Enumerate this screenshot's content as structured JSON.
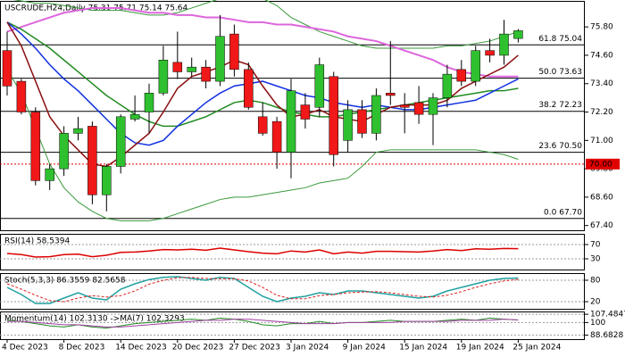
{
  "chart_data": [
    {
      "type": "candlestick",
      "title": "USCRUDE,H24,Daily 75.31 75.71 75.14 75.64",
      "categories": [
        "4 Dec 2023",
        null,
        null,
        null,
        "8 Dec 2023",
        null,
        null,
        null,
        "14 Dec 2023",
        null,
        null,
        null,
        "20 Dec 2023",
        null,
        null,
        null,
        "27 Dec 2023",
        null,
        null,
        null,
        "3 Jan 2024",
        null,
        null,
        null,
        "9 Jan 2024",
        null,
        null,
        null,
        "15 Jan 2024",
        null,
        null,
        null,
        "19 Jan 2024",
        null,
        null,
        null,
        "25 Jan 2024"
      ],
      "open": [
        74.8,
        73.5,
        72.2,
        69.3,
        69.8,
        71.3,
        71.6,
        68.7,
        69.9,
        71.9,
        72.2,
        73.0,
        74.3,
        73.9,
        74.1,
        73.5,
        75.5,
        74.0,
        72.0,
        71.8,
        70.5,
        72.5,
        72.4,
        73.7,
        71.0,
        72.3,
        71.3,
        73.0,
        72.5,
        72.6,
        72.1,
        72.8,
        74.0,
        73.5,
        74.8,
        74.6,
        75.31
      ],
      "high": [
        75.6,
        73.6,
        72.4,
        70.0,
        71.6,
        72.0,
        71.8,
        70.0,
        72.1,
        72.9,
        73.4,
        75.0,
        75.6,
        74.5,
        74.4,
        76.3,
        75.9,
        74.3,
        72.6,
        72.0,
        73.6,
        73.0,
        74.5,
        73.9,
        72.7,
        72.7,
        73.2,
        75.2,
        73.0,
        73.3,
        73.0,
        74.2,
        74.4,
        75.0,
        75.3,
        76.1,
        75.71
      ],
      "low": [
        72.9,
        72.1,
        69.1,
        68.9,
        69.5,
        71.0,
        68.3,
        68.0,
        69.6,
        71.8,
        71.3,
        72.9,
        73.6,
        73.7,
        73.2,
        73.3,
        73.7,
        72.3,
        71.2,
        69.8,
        69.4,
        71.5,
        72.0,
        69.9,
        70.5,
        71.1,
        71.0,
        72.5,
        71.3,
        71.7,
        70.8,
        72.4,
        73.3,
        73.3,
        74.3,
        74.2,
        75.14
      ],
      "close": [
        73.3,
        72.2,
        69.3,
        69.8,
        71.3,
        71.5,
        68.7,
        69.9,
        72.0,
        72.1,
        73.0,
        74.4,
        73.9,
        74.1,
        73.5,
        75.4,
        74.0,
        72.4,
        71.3,
        70.5,
        73.1,
        71.9,
        74.2,
        70.4,
        72.3,
        71.3,
        72.9,
        72.9,
        72.4,
        72.1,
        72.8,
        73.8,
        73.5,
        74.8,
        74.6,
        75.5,
        75.64
      ],
      "up_color": "#2fc02f",
      "down_color": "#f01818",
      "series": [
        {
          "color": "#3a9a3a",
          "width": 1,
          "values": [
            77.0,
            76.9,
            76.8,
            76.8,
            76.7,
            76.6,
            76.5,
            76.5,
            76.5,
            76.4,
            76.3,
            76.3,
            76.4,
            76.6,
            76.8,
            77.0,
            77.2,
            77.2,
            77.0,
            76.7,
            76.2,
            75.9,
            75.6,
            75.4,
            75.2,
            75.0,
            74.9,
            74.9,
            74.9,
            74.9,
            74.9,
            75.0,
            75.0,
            75.1,
            75.2,
            75.4,
            75.6
          ]
        },
        {
          "color": "#3a9a3a",
          "width": 1,
          "values": [
            74.0,
            73.0,
            71.5,
            70.0,
            69.0,
            68.4,
            68.0,
            67.7,
            67.6,
            67.6,
            67.6,
            67.7,
            67.9,
            68.1,
            68.3,
            68.5,
            68.6,
            68.6,
            68.7,
            68.8,
            68.9,
            69.0,
            69.2,
            69.3,
            69.4,
            69.9,
            70.5,
            70.6,
            70.6,
            70.6,
            70.6,
            70.6,
            70.6,
            70.6,
            70.5,
            70.4,
            70.2
          ]
        },
        {
          "color": "#dd66dd",
          "width": 2,
          "values": [
            75.6,
            75.8,
            76.0,
            76.2,
            76.4,
            76.5,
            76.6,
            76.6,
            76.6,
            76.5,
            76.4,
            76.4,
            76.3,
            76.3,
            76.2,
            76.2,
            76.1,
            76.0,
            76.0,
            75.9,
            75.9,
            75.8,
            75.7,
            75.6,
            75.4,
            75.3,
            75.2,
            75.0,
            74.8,
            74.6,
            74.4,
            74.1,
            73.9,
            73.8,
            73.7,
            73.7,
            73.7
          ]
        },
        {
          "color": "#228b22",
          "width": 1.5,
          "values": [
            76.0,
            75.7,
            75.3,
            74.9,
            74.4,
            73.9,
            73.4,
            72.9,
            72.5,
            72.1,
            71.8,
            71.6,
            71.6,
            71.8,
            72.0,
            72.3,
            72.6,
            72.7,
            72.6,
            72.4,
            72.2,
            72.1,
            72.0,
            72.0,
            72.1,
            72.2,
            72.3,
            72.4,
            72.5,
            72.6,
            72.7,
            72.8,
            72.9,
            73.0,
            73.1,
            73.1,
            73.2
          ]
        },
        {
          "color": "#1030e0",
          "width": 1.5,
          "values": [
            76.0,
            75.5,
            74.9,
            74.2,
            73.6,
            73.1,
            72.5,
            71.9,
            71.3,
            70.9,
            70.8,
            71.0,
            71.6,
            72.1,
            72.6,
            73.0,
            73.3,
            73.4,
            73.5,
            73.3,
            73.1,
            72.9,
            72.8,
            72.6,
            72.5,
            72.4,
            72.5,
            72.4,
            72.3,
            72.3,
            72.4,
            72.5,
            72.6,
            72.7,
            73.0,
            73.3,
            73.6
          ]
        },
        {
          "color": "#8b1010",
          "width": 1.5,
          "values": [
            76.0,
            75.0,
            73.5,
            72.0,
            71.2,
            70.6,
            70.0,
            69.9,
            70.3,
            70.8,
            71.3,
            72.2,
            73.2,
            73.7,
            73.9,
            74.1,
            74.4,
            74.2,
            73.3,
            72.5,
            72.0,
            72.1,
            72.3,
            72.0,
            71.9,
            71.8,
            72.1,
            72.4,
            72.5,
            72.5,
            72.5,
            72.7,
            73.2,
            73.5,
            73.8,
            74.1,
            74.6
          ]
        }
      ],
      "levels": [
        {
          "value": 75.04,
          "label": "61.8 75.04"
        },
        {
          "value": 73.63,
          "label": "50.0 73.63"
        },
        {
          "value": 72.23,
          "label": "38.2 72.23"
        },
        {
          "value": 70.5,
          "label": "23.6 70.50"
        },
        {
          "value": 67.7,
          "label": "0.0 67.70"
        }
      ],
      "marker_line": {
        "value": 70.0,
        "label": "70.00",
        "color": "#e00000"
      },
      "ylim": [
        67.2,
        76.9
      ],
      "yticks": [
        {
          "value": 75.8,
          "label": "75.80"
        },
        {
          "value": 74.6,
          "label": "74.60"
        },
        {
          "value": 73.4,
          "label": "73.40"
        },
        {
          "value": 72.2,
          "label": "72.20"
        },
        {
          "value": 71.0,
          "label": "71.00"
        },
        {
          "value": 69.8,
          "label": "69.80"
        },
        {
          "value": 68.6,
          "label": "68.60"
        },
        {
          "value": 67.4,
          "label": "67.40"
        }
      ]
    },
    {
      "type": "line",
      "title": "RSI(14) 58.5394",
      "ylim": [
        0,
        100
      ],
      "yticks": [
        30,
        70
      ],
      "series": [
        {
          "color": "#dd0000",
          "width": 1.5,
          "values": [
            45,
            42,
            35,
            36,
            42,
            43,
            36,
            40,
            48,
            49,
            52,
            56,
            55,
            57,
            54,
            60,
            55,
            50,
            46,
            44,
            52,
            49,
            55,
            44,
            49,
            46,
            51,
            51,
            50,
            49,
            52,
            56,
            53,
            58,
            57,
            59,
            58.5394
          ]
        }
      ]
    },
    {
      "type": "line",
      "title": "Stoch(5,3,3) 86.3559 82.5658",
      "ylim": [
        0,
        100
      ],
      "yticks": [
        20,
        80
      ],
      "series": [
        {
          "color": "#20a0a0",
          "width": 1.5,
          "values": [
            60,
            40,
            15,
            15,
            30,
            45,
            30,
            25,
            55,
            70,
            82,
            88,
            90,
            85,
            80,
            88,
            85,
            60,
            35,
            20,
            30,
            35,
            45,
            40,
            50,
            50,
            45,
            40,
            35,
            30,
            35,
            50,
            60,
            70,
            80,
            85,
            86.3559
          ]
        },
        {
          "color": "#dd2222",
          "width": 1,
          "dash": true,
          "values": [
            70,
            55,
            38,
            23,
            20,
            30,
            37,
            33,
            37,
            50,
            69,
            80,
            87,
            88,
            85,
            84,
            84,
            78,
            60,
            38,
            28,
            28,
            37,
            40,
            45,
            47,
            48,
            45,
            40,
            35,
            33,
            38,
            48,
            60,
            70,
            78,
            82.5658
          ]
        }
      ]
    },
    {
      "type": "line",
      "title": "Momentum(14) 102.3130 ->MA(7) 102.3293",
      "ylim": [
        85,
        110
      ],
      "yticks": [
        107.4847,
        100,
        88.6828
      ],
      "series": [
        {
          "color": "#228b22",
          "width": 1,
          "values": [
            102,
            101,
            99,
            97,
            96,
            98,
            96,
            95,
            97,
            99,
            100,
            101,
            102,
            103,
            102,
            104,
            103,
            101,
            98,
            97,
            99,
            99,
            101,
            99,
            100,
            100,
            101,
            102,
            101,
            101,
            101,
            102,
            103,
            102,
            104,
            103,
            102.313
          ]
        },
        {
          "color": "#a040a0",
          "width": 1,
          "values": [
            101,
            101,
            100,
            99,
            98,
            98,
            97,
            96,
            96,
            97,
            98,
            99,
            100,
            101,
            102,
            102,
            103,
            103,
            102,
            101,
            100,
            99,
            99,
            99,
            100,
            100,
            100,
            100,
            101,
            101,
            101,
            101,
            102,
            102,
            102,
            103,
            102.3293
          ]
        }
      ]
    }
  ]
}
